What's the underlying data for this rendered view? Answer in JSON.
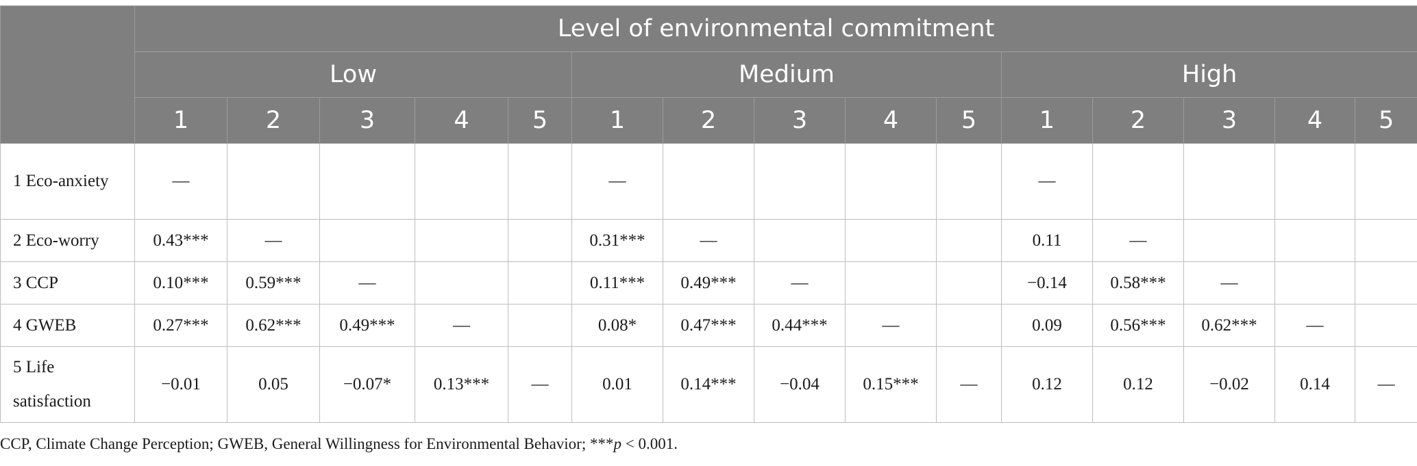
{
  "table": {
    "title": "Level of environmental commitment",
    "groups": [
      "Low",
      "Medium",
      "High"
    ],
    "column_numbers": [
      "1",
      "2",
      "3",
      "4",
      "5"
    ],
    "rows": [
      {
        "label": "1 Eco-anxiety",
        "low": [
          "—",
          "",
          "",
          "",
          ""
        ],
        "medium": [
          "—",
          "",
          "",
          "",
          ""
        ],
        "high": [
          "—",
          "",
          "",
          "",
          ""
        ]
      },
      {
        "label": "2 Eco-worry",
        "low": [
          "0.43***",
          "—",
          "",
          "",
          ""
        ],
        "medium": [
          "0.31***",
          "—",
          "",
          "",
          ""
        ],
        "high": [
          "0.11",
          "—",
          "",
          "",
          ""
        ]
      },
      {
        "label": "3 CCP",
        "low": [
          "0.10***",
          "0.59***",
          "—",
          "",
          ""
        ],
        "medium": [
          "0.11***",
          "0.49***",
          "—",
          "",
          ""
        ],
        "high": [
          "−0.14",
          "0.58***",
          "—",
          "",
          ""
        ]
      },
      {
        "label": "4 GWEB",
        "low": [
          "0.27***",
          "0.62***",
          "0.49***",
          "—",
          ""
        ],
        "medium": [
          "0.08*",
          "0.47***",
          "0.44***",
          "—",
          ""
        ],
        "high": [
          "0.09",
          "0.56***",
          "0.62***",
          "—",
          ""
        ]
      },
      {
        "label": "5 Life satisfaction",
        "low": [
          "−0.01",
          "0.05",
          "−0.07*",
          "0.13***",
          "—"
        ],
        "medium": [
          "0.01",
          "0.14***",
          "−0.04",
          "0.15***",
          "—"
        ],
        "high": [
          "0.12",
          "0.12",
          "−0.02",
          "0.14",
          "—"
        ]
      }
    ]
  },
  "footnote": {
    "text": "CCP, Climate Change Perception; GWEB, General Willingness for Environmental Behavior; ***",
    "p_symbol": "p",
    "tail": " < 0.001."
  }
}
